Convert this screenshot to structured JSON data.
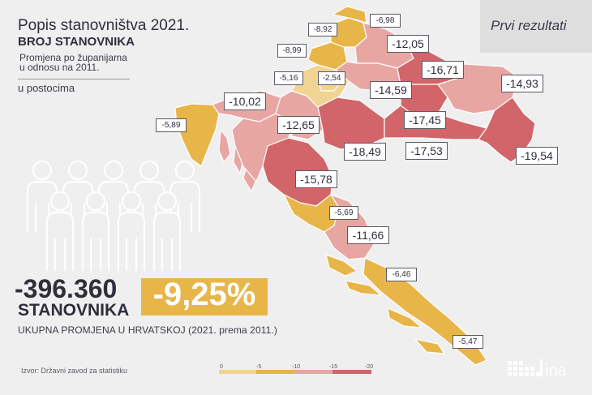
{
  "header": {
    "title": "Popis stanovništva 2021.",
    "subtitle": "BROJ STANOVNIKA",
    "change_line1": "Promjena po županijama",
    "change_line2": "u odnosu na 2011.",
    "unit": "u postocima",
    "badge": "Prvi rezultati"
  },
  "summary": {
    "total": "-396.360",
    "total_unit": "STANOVNIKA",
    "percent": "-9,25%",
    "caption": "UKUPNA PROMJENA U HRVATSKOJ (2021. prema 2011.)"
  },
  "source": "Izvor: Državni zavod za statistiku",
  "logo_text": "ina",
  "legend": {
    "ticks": [
      "0",
      "-5",
      "-10",
      "-15",
      "-20"
    ],
    "colors": [
      "#f1d491",
      "#e8b549",
      "#e8a6a3",
      "#d26569"
    ]
  },
  "regions": [
    {
      "value": "-6,98"
    },
    {
      "value": "-8,92"
    },
    {
      "value": "-8,99"
    },
    {
      "value": "-12,05"
    },
    {
      "value": "-5,16"
    },
    {
      "value": "-2,54"
    },
    {
      "value": "-16,71"
    },
    {
      "value": "-14,59"
    },
    {
      "value": "-14,93"
    },
    {
      "value": "-10,02"
    },
    {
      "value": "-5,89"
    },
    {
      "value": "-12,65"
    },
    {
      "value": "-17,45"
    },
    {
      "value": "-18,49"
    },
    {
      "value": "-17,53"
    },
    {
      "value": "-19,54"
    },
    {
      "value": "-15,78"
    },
    {
      "value": "-5,69"
    },
    {
      "value": "-11,66"
    },
    {
      "value": "-6,46"
    },
    {
      "value": "-5,47"
    }
  ],
  "colors": {
    "background": "#efefef",
    "accent": "#e8b549",
    "band_0_5": "#f1d491",
    "band_5_10": "#e8b549",
    "band_10_15": "#e8a6a3",
    "band_15_20": "#d26569"
  }
}
